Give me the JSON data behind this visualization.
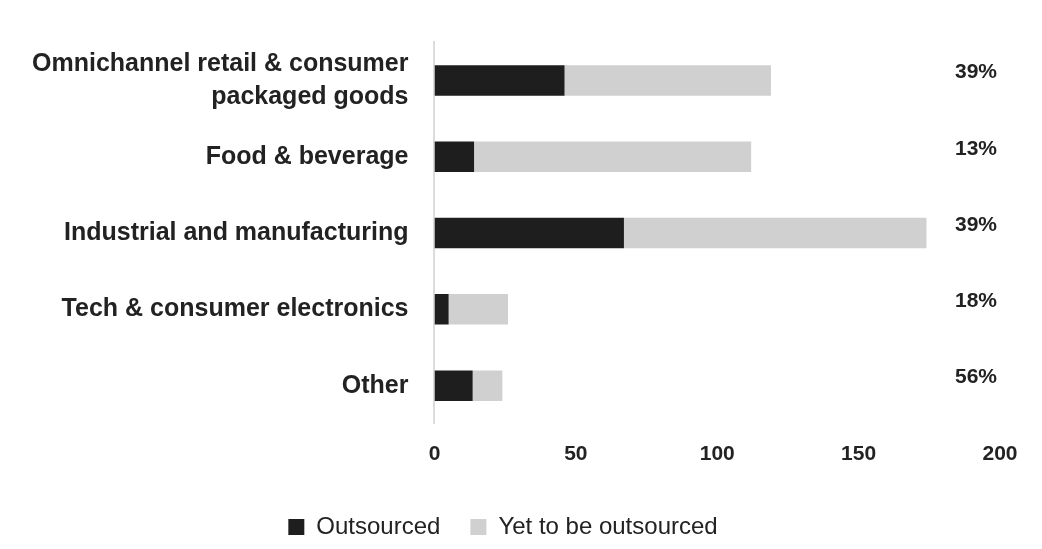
{
  "chart_data": {
    "type": "bar",
    "orientation": "horizontal",
    "stacked": true,
    "categories": [
      "Omnichannel retail & consumer packaged goods",
      "Food & beverage",
      "Industrial and manufacturing",
      "Tech & consumer electronics",
      "Other"
    ],
    "series": [
      {
        "name": "Outsourced",
        "color": "#1e1e1e",
        "values": [
          46,
          14,
          67,
          5,
          13.5
        ]
      },
      {
        "name": "Yet to be outsourced",
        "color": "#d0d0d0",
        "values": [
          73,
          98,
          107,
          21,
          10.5
        ]
      }
    ],
    "xlim": [
      0,
      200
    ],
    "xticks": [
      0,
      50,
      100,
      150,
      200
    ],
    "grid": false,
    "legend": "bottom",
    "annotations": [
      "39%",
      "13%",
      "39%",
      "18%",
      "56%"
    ]
  }
}
